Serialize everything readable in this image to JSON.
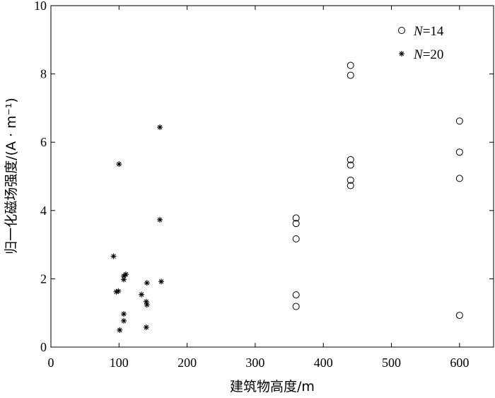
{
  "chart_data": {
    "type": "scatter",
    "xlabel": "建筑物高度/m",
    "ylabel": "归一化磁场强度/(A · m⁻¹)",
    "xlim": [
      0,
      650
    ],
    "ylim": [
      0,
      10
    ],
    "xticks": [
      0,
      100,
      200,
      300,
      400,
      500,
      600
    ],
    "yticks": [
      0,
      2,
      4,
      6,
      8,
      10
    ],
    "grid": false,
    "legend_position": "top-right",
    "series": [
      {
        "name_italic": "N",
        "name_rest": "=14",
        "marker": "circle",
        "points": [
          [
            360,
            3.78
          ],
          [
            360,
            3.62
          ],
          [
            360,
            3.17
          ],
          [
            360,
            1.53
          ],
          [
            360,
            1.19
          ],
          [
            440,
            8.25
          ],
          [
            440,
            7.96
          ],
          [
            440,
            5.49
          ],
          [
            440,
            5.33
          ],
          [
            440,
            4.89
          ],
          [
            440,
            4.73
          ],
          [
            600,
            6.62
          ],
          [
            600,
            5.71
          ],
          [
            600,
            4.94
          ],
          [
            600,
            0.93
          ]
        ]
      },
      {
        "name_italic": "N",
        "name_rest": "=20",
        "marker": "star",
        "points": [
          [
            92,
            2.66
          ],
          [
            100,
            5.36
          ],
          [
            96,
            1.62
          ],
          [
            99,
            1.64
          ],
          [
            101,
            0.5
          ],
          [
            107,
            2.08
          ],
          [
            107,
            1.98
          ],
          [
            110,
            2.13
          ],
          [
            107,
            0.97
          ],
          [
            107,
            0.77
          ],
          [
            133,
            1.54
          ],
          [
            141,
            1.88
          ],
          [
            140,
            1.33
          ],
          [
            141,
            1.24
          ],
          [
            140,
            0.58
          ],
          [
            160,
            6.44
          ],
          [
            160,
            3.73
          ],
          [
            162,
            1.92
          ]
        ]
      }
    ]
  }
}
